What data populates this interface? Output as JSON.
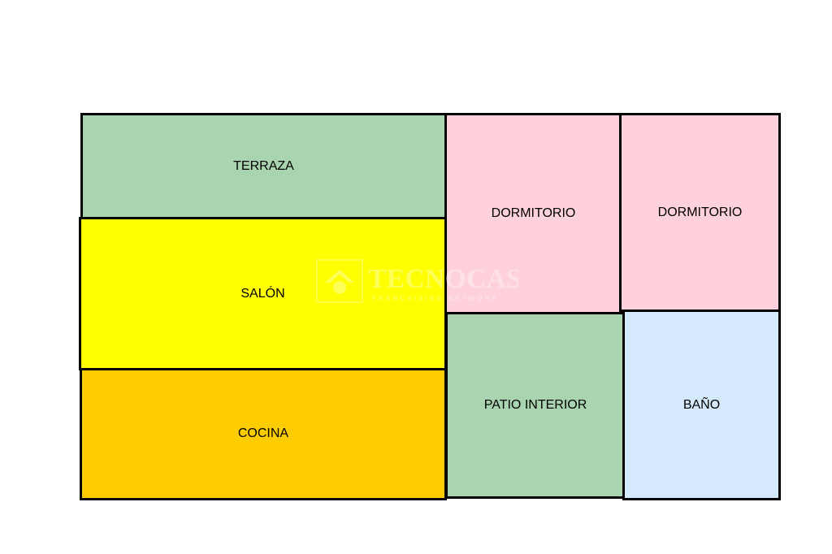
{
  "rooms": [
    {
      "label": "TERRAZA",
      "color": "#a8d5b0"
    },
    {
      "label": "SALÓN",
      "color": "#ffff00"
    },
    {
      "label": "COCINA",
      "color": "#ffcc00"
    },
    {
      "label": "DORMITORIO",
      "color": "#ffd1dc"
    },
    {
      "label": "DORMITORIO",
      "color": "#ffd1dc"
    },
    {
      "label": "PATIO INTERIOR",
      "color": "#a8d5b0"
    },
    {
      "label": "BAÑO",
      "color": "#d4e9fb"
    }
  ],
  "watermark": {
    "brand": "TECNOCASA",
    "tagline": "FRANCHISING NETWORK"
  }
}
